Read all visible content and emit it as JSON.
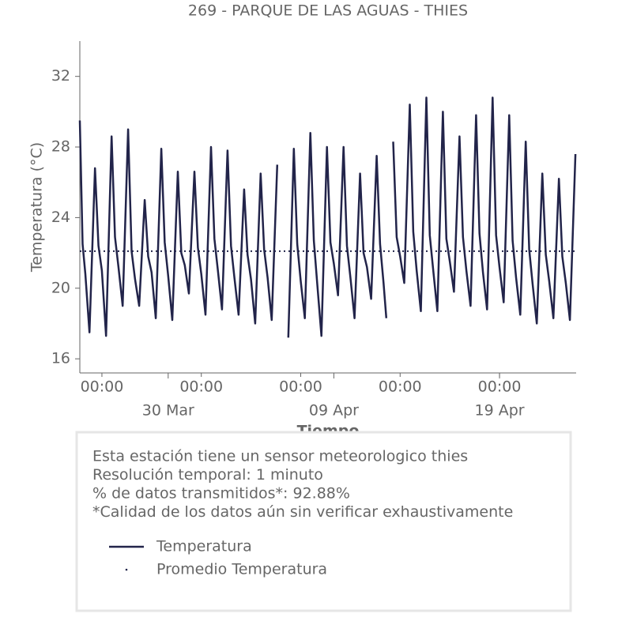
{
  "chart_data": {
    "type": "line",
    "title": "269 - PARQUE DE LAS AGUAS - THIES",
    "x_label": "Tiempo",
    "y_label": "Temperatura (°C)",
    "xlim": [
      "03-24 16:00",
      "04-23 15:00"
    ],
    "xticks": [
      {
        "value": "03-26 00:00",
        "label": "00:00"
      },
      {
        "value": "04-01 00:00",
        "label": "00:00"
      },
      {
        "value": "04-07 00:00",
        "label": "00:00"
      },
      {
        "value": "04-13 00:00",
        "label": "00:00"
      },
      {
        "value": "04-19 00:00",
        "label": "00:00"
      }
    ],
    "date_ticks": [
      {
        "value": "03-30 00:00",
        "label": "30 Mar"
      },
      {
        "value": "04-09 00:00",
        "label": "09 Apr"
      },
      {
        "value": "04-19 00:00",
        "label": "19 Apr"
      }
    ],
    "ylim": [
      15.2,
      34
    ],
    "yticks": [
      16,
      20,
      24,
      28,
      32
    ],
    "x": [
      "03-24 16:00",
      "03-24 20:00",
      "03-25 00:00",
      "03-25 06:00",
      "03-25 14:00",
      "03-25 19:00",
      "03-26 00:00",
      "03-26 06:00",
      "03-26 14:00",
      "03-26 19:00",
      "03-27 00:00",
      "03-27 06:00",
      "03-27 14:00",
      "03-27 19:00",
      "03-28 00:00",
      "03-28 06:00",
      "03-28 14:00",
      "03-28 19:00",
      "03-29 00:00",
      "03-29 06:00",
      "03-29 14:00",
      "03-29 19:00",
      "03-30 00:00",
      "03-30 06:00",
      "03-30 14:00",
      "03-30 19:00",
      "03-31 00:00",
      "03-31 06:00",
      "03-31 14:00",
      "03-31 19:00",
      "04-01 00:00",
      "04-01 06:00",
      "04-01 14:00",
      "04-01 19:00",
      "04-02 00:00",
      "04-02 06:00",
      "04-02 14:00",
      "04-02 19:00",
      "04-03 00:00",
      "04-03 06:00",
      "04-03 14:00",
      "04-03 19:00",
      "04-04 00:00",
      "04-04 06:00",
      "04-04 14:00",
      "04-04 19:00",
      "04-05 00:00",
      "04-05 06:00",
      "04-05 14:00",
      "04-05 19:00",
      "04-06 00:00",
      "04-06 06:00",
      "04-06 14:00",
      "04-06 19:00",
      "04-07 00:00",
      "04-07 06:00",
      "04-07 14:00",
      "04-07 19:00",
      "04-08 00:00",
      "04-08 06:00",
      "04-08 14:00",
      "04-08 19:00",
      "04-09 00:00",
      "04-09 06:00",
      "04-09 14:00",
      "04-09 19:00",
      "04-10 00:00",
      "04-10 06:00",
      "04-10 14:00",
      "04-10 19:00",
      "04-11 00:00",
      "04-11 06:00",
      "04-11 14:00",
      "04-11 19:00",
      "04-12 00:00",
      "04-12 04:00",
      "04-12 08:00",
      "04-12 14:00",
      "04-12 19:00",
      "04-13 00:00",
      "04-13 06:00",
      "04-13 14:00",
      "04-13 19:00",
      "04-14 00:00",
      "04-14 06:00",
      "04-14 14:00",
      "04-14 19:00",
      "04-15 00:00",
      "04-15 06:00",
      "04-15 14:00",
      "04-15 19:00",
      "04-16 00:00",
      "04-16 06:00",
      "04-16 14:00",
      "04-16 19:00",
      "04-17 00:00",
      "04-17 06:00",
      "04-17 14:00",
      "04-17 19:00",
      "04-18 00:00",
      "04-18 06:00",
      "04-18 14:00",
      "04-18 19:00",
      "04-19 00:00",
      "04-19 06:00",
      "04-19 14:00",
      "04-19 19:00",
      "04-20 00:00",
      "04-20 06:00",
      "04-20 14:00",
      "04-20 19:00",
      "04-21 00:00",
      "04-21 06:00",
      "04-21 14:00",
      "04-21 19:00",
      "04-22 00:00",
      "04-22 06:00",
      "04-22 14:00",
      "04-22 19:00",
      "04-23 00:00",
      "04-23 06:00",
      "04-23 14:00"
    ],
    "series": [
      {
        "name": "Temperatura",
        "color": "#22244a",
        "values": [
          29.5,
          22.5,
          20.8,
          17.5,
          26.8,
          22.4,
          21.0,
          17.3,
          28.6,
          22.9,
          21.2,
          19.0,
          29.0,
          22.1,
          20.5,
          19.0,
          25.0,
          21.8,
          20.9,
          18.3,
          27.9,
          22.6,
          20.7,
          18.2,
          26.6,
          22.0,
          21.3,
          19.7,
          26.6,
          22.3,
          20.8,
          18.5,
          28.0,
          22.8,
          21.0,
          18.8,
          27.8,
          22.4,
          20.6,
          18.5,
          25.6,
          21.9,
          20.5,
          18.0,
          26.5,
          22.2,
          20.6,
          18.2,
          27.0,
          null,
          null,
          17.2,
          27.9,
          22.5,
          20.4,
          18.3,
          28.8,
          22.7,
          20.2,
          17.3,
          28.0,
          22.6,
          21.4,
          19.6,
          28.0,
          22.4,
          20.6,
          18.3,
          26.5,
          22.0,
          21.2,
          19.4,
          27.5,
          22.5,
          20.3,
          18.3,
          null,
          28.3,
          22.9,
          21.8,
          20.3,
          30.4,
          23.2,
          21.0,
          18.7,
          30.8,
          23.0,
          21.0,
          18.7,
          30.0,
          22.8,
          21.5,
          19.8,
          28.6,
          22.9,
          21.0,
          19.0,
          29.8,
          23.1,
          20.9,
          18.8,
          30.8,
          23.0,
          21.2,
          19.2,
          29.8,
          22.7,
          20.6,
          18.5,
          28.3,
          22.2,
          20.2,
          18.0,
          26.5,
          21.9,
          20.4,
          18.3,
          26.2,
          21.8,
          20.3,
          18.2,
          27.6
        ]
      }
    ],
    "reference_lines": [
      {
        "name": "Promedio Temperatura",
        "value": 22.1,
        "color": "#22244a"
      }
    ]
  },
  "info_box": {
    "lines": [
      "Esta estación tiene un sensor meteorologico thies",
      "Resolución temporal: 1 minuto",
      "% de datos transmitidos*: 92.88%",
      "*Calidad de los datos aún sin verificar exhaustivamente"
    ]
  }
}
